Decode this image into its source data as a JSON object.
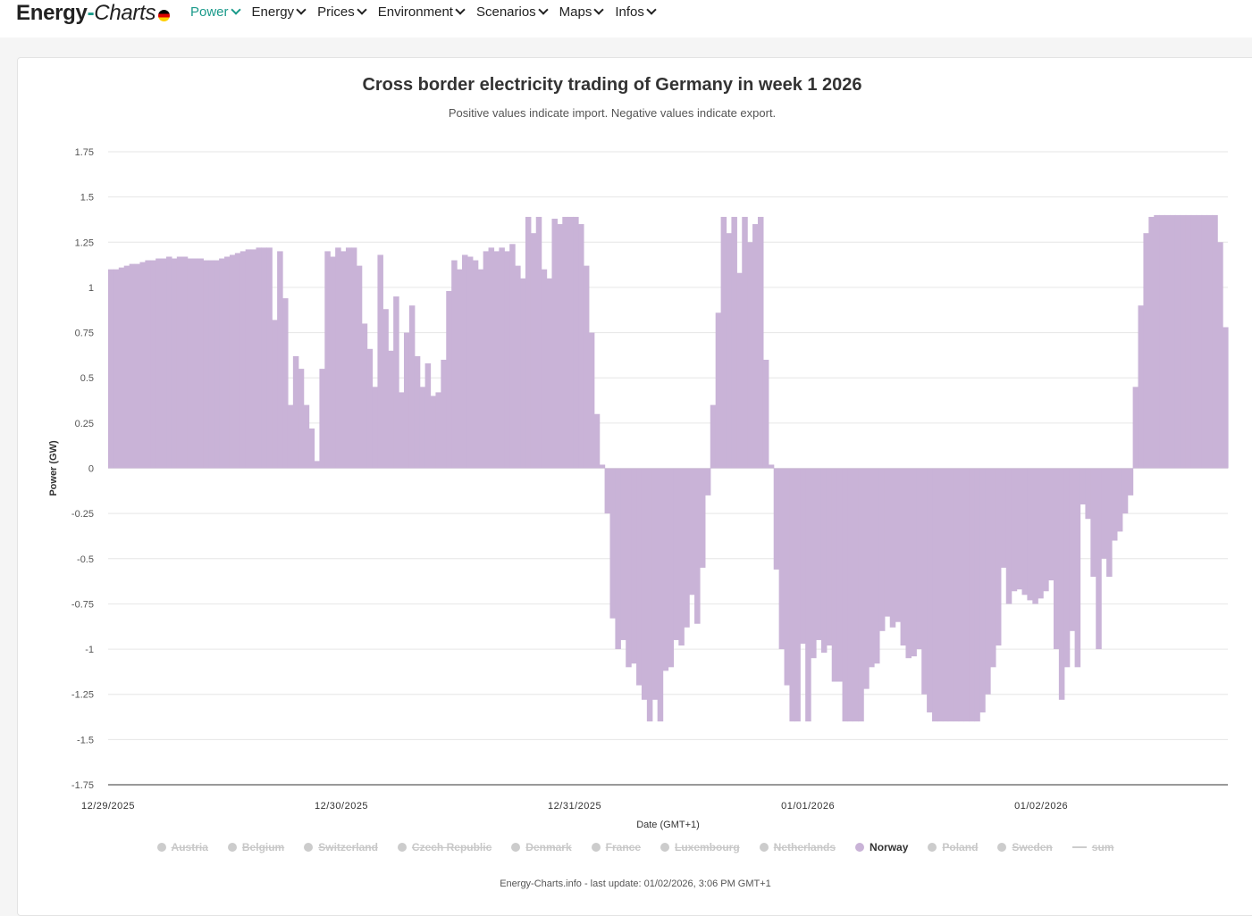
{
  "brand": {
    "part1": "Energy",
    "separator": "-",
    "part2": "Charts"
  },
  "nav": [
    {
      "label": "Power",
      "active": true
    },
    {
      "label": "Energy",
      "active": false
    },
    {
      "label": "Prices",
      "active": false
    },
    {
      "label": "Environment",
      "active": false
    },
    {
      "label": "Scenarios",
      "active": false
    },
    {
      "label": "Maps",
      "active": false
    },
    {
      "label": "Infos",
      "active": false
    }
  ],
  "colors": {
    "accent": "#1a9a8a",
    "bar": "#c9b3d7",
    "disabled": "#cccccc"
  },
  "chart_data": {
    "type": "bar",
    "title": "Cross border electricity trading of Germany in week 1 2026",
    "subtitle": "Positive values indicate import. Negative values indicate export.",
    "xlabel": "Date (GMT+1)",
    "ylabel": "Power (GW)",
    "ylim": [
      -1.75,
      1.75
    ],
    "y_ticks": [
      "1.75",
      "1.5",
      "1.25",
      "1",
      "0.75",
      "0.5",
      "0.25",
      "0",
      "-0.25",
      "-0.5",
      "-0.75",
      "-1",
      "-1.25",
      "-1.5",
      "-1.75"
    ],
    "x_ticks": [
      "12/29/2025",
      "12/30/2025",
      "12/31/2025",
      "01/01/2026",
      "01/02/2026"
    ],
    "grid": true,
    "legend_position": "bottom",
    "series": [
      {
        "name": "Norway",
        "color": "#c9b3d7",
        "values": [
          1.1,
          1.1,
          1.11,
          1.12,
          1.13,
          1.13,
          1.14,
          1.15,
          1.15,
          1.16,
          1.16,
          1.17,
          1.16,
          1.17,
          1.17,
          1.16,
          1.16,
          1.16,
          1.15,
          1.15,
          1.15,
          1.16,
          1.17,
          1.18,
          1.19,
          1.2,
          1.21,
          1.21,
          1.22,
          1.22,
          1.22,
          0.82,
          1.2,
          0.94,
          0.35,
          0.62,
          0.55,
          0.35,
          0.22,
          0.04,
          0.55,
          1.2,
          1.17,
          1.22,
          1.2,
          1.22,
          1.22,
          1.12,
          0.8,
          0.66,
          0.45,
          1.18,
          0.88,
          0.65,
          0.95,
          0.42,
          0.75,
          0.9,
          0.62,
          0.45,
          0.58,
          0.4,
          0.42,
          0.6,
          0.98,
          1.15,
          1.1,
          1.18,
          1.17,
          1.15,
          1.1,
          1.2,
          1.22,
          1.2,
          1.22,
          1.2,
          1.24,
          1.12,
          1.05,
          1.39,
          1.3,
          1.39,
          1.1,
          1.05,
          1.38,
          1.35,
          1.39,
          1.39,
          1.39,
          1.35,
          1.12,
          0.75,
          0.3,
          0.02,
          -0.25,
          -0.83,
          -1.0,
          -0.95,
          -1.1,
          -1.08,
          -1.2,
          -1.28,
          -1.4,
          -1.28,
          -1.4,
          -1.12,
          -1.1,
          -0.95,
          -0.98,
          -0.88,
          -0.7,
          -0.86,
          -0.55,
          -0.15,
          0.35,
          0.86,
          1.39,
          1.3,
          1.39,
          1.08,
          1.39,
          1.25,
          1.35,
          1.39,
          0.6,
          0.02,
          -0.56,
          -1.0,
          -1.2,
          -1.4,
          -1.4,
          -0.97,
          -1.4,
          -1.05,
          -0.95,
          -1.02,
          -0.98,
          -1.18,
          -1.18,
          -1.4,
          -1.4,
          -1.4,
          -1.4,
          -1.22,
          -1.1,
          -1.08,
          -0.9,
          -0.82,
          -0.88,
          -0.85,
          -0.98,
          -1.05,
          -1.04,
          -1.0,
          -1.25,
          -1.35,
          -1.4,
          -1.4,
          -1.4,
          -1.4,
          -1.4,
          -1.4,
          -1.4,
          -1.4,
          -1.4,
          -1.35,
          -1.25,
          -1.1,
          -0.98,
          -0.55,
          -0.75,
          -0.68,
          -0.67,
          -0.7,
          -0.73,
          -0.75,
          -0.72,
          -0.68,
          -0.62,
          -1.0,
          -1.28,
          -1.1,
          -0.9,
          -1.1,
          -0.2,
          -0.28,
          -0.6,
          -1.0,
          -0.5,
          -0.6,
          -0.4,
          -0.35,
          -0.25,
          -0.15,
          0.45,
          0.9,
          1.3,
          1.39,
          1.4,
          1.4,
          1.4,
          1.4,
          1.4,
          1.4,
          1.4,
          1.4,
          1.4,
          1.4,
          1.4,
          1.4,
          1.25,
          0.78
        ]
      }
    ],
    "legend": [
      {
        "name": "Austria",
        "enabled": false,
        "marker": "dot"
      },
      {
        "name": "Belgium",
        "enabled": false,
        "marker": "dot"
      },
      {
        "name": "Switzerland",
        "enabled": false,
        "marker": "dot"
      },
      {
        "name": "Czech Republic",
        "enabled": false,
        "marker": "dot"
      },
      {
        "name": "Denmark",
        "enabled": false,
        "marker": "dot"
      },
      {
        "name": "France",
        "enabled": false,
        "marker": "dot"
      },
      {
        "name": "Luxembourg",
        "enabled": false,
        "marker": "dot"
      },
      {
        "name": "Netherlands",
        "enabled": false,
        "marker": "dot"
      },
      {
        "name": "Norway",
        "enabled": true,
        "marker": "dot"
      },
      {
        "name": "Poland",
        "enabled": false,
        "marker": "dot"
      },
      {
        "name": "Sweden",
        "enabled": false,
        "marker": "dot"
      },
      {
        "name": "sum",
        "enabled": false,
        "marker": "line"
      }
    ]
  },
  "credit": "Energy-Charts.info - last update: 01/02/2026, 3:06 PM GMT+1"
}
